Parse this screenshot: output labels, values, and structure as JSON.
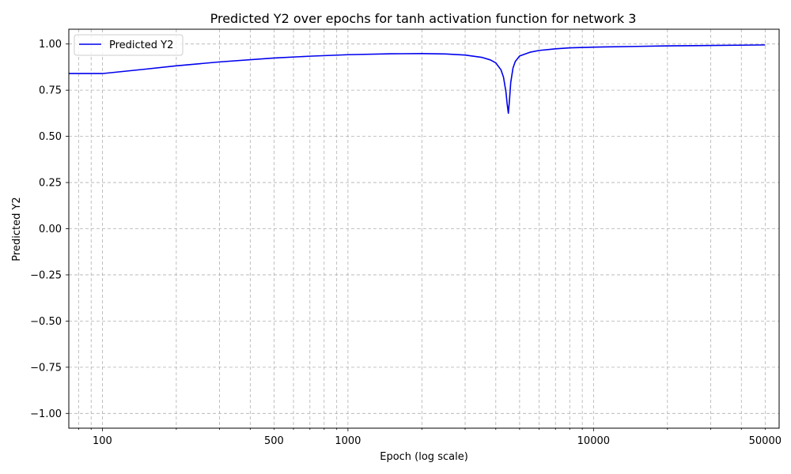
{
  "chart_data": {
    "type": "line",
    "title": "Predicted Y2 over epochs for tanh activation function for network 3",
    "xlabel": "Epoch (log scale)",
    "ylabel": "Predicted Y2",
    "x_scale": "log",
    "xlim": [
      73,
      57000
    ],
    "ylim": [
      -1.08,
      1.08
    ],
    "x_ticks": [
      100,
      500,
      1000,
      10000,
      50000
    ],
    "x_tick_labels": [
      "100",
      "500",
      "1000",
      "10000",
      "50000"
    ],
    "y_ticks": [
      -1.0,
      -0.75,
      -0.5,
      -0.25,
      0.0,
      0.25,
      0.5,
      0.75,
      1.0
    ],
    "y_tick_labels": [
      "−1.00",
      "−0.75",
      "−0.50",
      "−0.25",
      "0.00",
      "0.25",
      "0.50",
      "0.75",
      "1.00"
    ],
    "grid": true,
    "legend_position": "top-left",
    "series": [
      {
        "name": "Predicted Y2",
        "color": "#0000ee",
        "x": [
          1,
          100,
          150,
          200,
          300,
          500,
          700,
          1000,
          1500,
          2000,
          2500,
          3000,
          3500,
          3800,
          4000,
          4200,
          4300,
          4400,
          4450,
          4500,
          4550,
          4600,
          4700,
          4800,
          5000,
          5500,
          6000,
          7000,
          8000,
          10000,
          15000,
          20000,
          30000,
          50000
        ],
        "values": [
          0.84,
          0.84,
          0.864,
          0.882,
          0.903,
          0.924,
          0.934,
          0.942,
          0.947,
          0.948,
          0.946,
          0.94,
          0.928,
          0.914,
          0.898,
          0.86,
          0.82,
          0.74,
          0.675,
          0.625,
          0.7,
          0.79,
          0.87,
          0.905,
          0.935,
          0.955,
          0.965,
          0.974,
          0.979,
          0.983,
          0.987,
          0.99,
          0.992,
          0.995
        ]
      }
    ]
  }
}
